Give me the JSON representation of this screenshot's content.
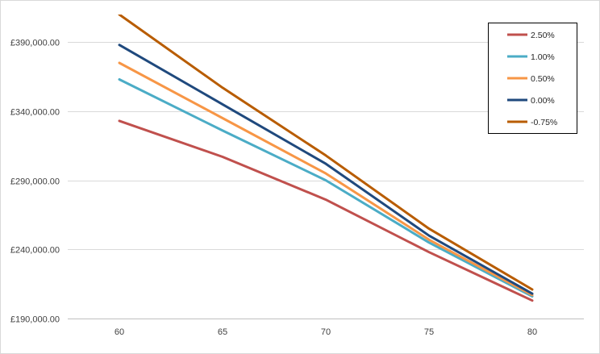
{
  "chart_data": {
    "type": "line",
    "title": "",
    "xlabel": "",
    "ylabel": "",
    "x": [
      60,
      65,
      70,
      75,
      80
    ],
    "x_tick_labels": [
      "60",
      "65",
      "70",
      "75",
      "80"
    ],
    "ylim": [
      190000,
      410000
    ],
    "y_ticks": [
      190000,
      240000,
      290000,
      340000,
      390000
    ],
    "y_tick_labels": [
      "£190,000.00",
      "£240,000.00",
      "£290,000.00",
      "£340,000.00",
      "£390,000.00"
    ],
    "grid": true,
    "legend_position": "top-right",
    "series": [
      {
        "name": "2.50%",
        "color": "#C0504D",
        "values": [
          333000,
          307000,
          276000,
          238000,
          203000
        ]
      },
      {
        "name": "1.00%",
        "color": "#4BACC6",
        "values": [
          363000,
          326000,
          290000,
          245000,
          206000
        ]
      },
      {
        "name": "0.50%",
        "color": "#F79646",
        "values": [
          375000,
          335000,
          295000,
          247000,
          207000
        ]
      },
      {
        "name": "0.00%",
        "color": "#1F497D",
        "values": [
          388000,
          345000,
          302000,
          250000,
          208000
        ]
      },
      {
        "name": "-0.75%",
        "color": "#B85C00",
        "values": [
          410000,
          357000,
          308000,
          255000,
          211000
        ]
      }
    ]
  }
}
